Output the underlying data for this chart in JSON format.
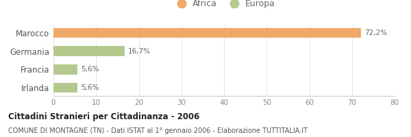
{
  "categories": [
    "Marocco",
    "Germania",
    "Francia",
    "Irlanda"
  ],
  "values": [
    72.2,
    16.7,
    5.6,
    5.6
  ],
  "colors": [
    "#f0a868",
    "#b5c98e",
    "#b5c98e",
    "#b5c98e"
  ],
  "bar_labels": [
    "72,2%",
    "16,7%",
    "5,6%",
    "5,6%"
  ],
  "legend": [
    {
      "label": "Africa",
      "color": "#f0a868"
    },
    {
      "label": "Europa",
      "color": "#b5c98e"
    }
  ],
  "xlim": [
    0,
    80
  ],
  "xticks": [
    0,
    10,
    20,
    30,
    40,
    50,
    60,
    70,
    80
  ],
  "title": "Cittadini Stranieri per Cittadinanza - 2006",
  "subtitle": "COMUNE DI MONTAGNE (TN) - Dati ISTAT al 1° gennaio 2006 - Elaborazione TUTTITALIA.IT",
  "background_color": "#ffffff",
  "grid_color": "#e5e5e5"
}
